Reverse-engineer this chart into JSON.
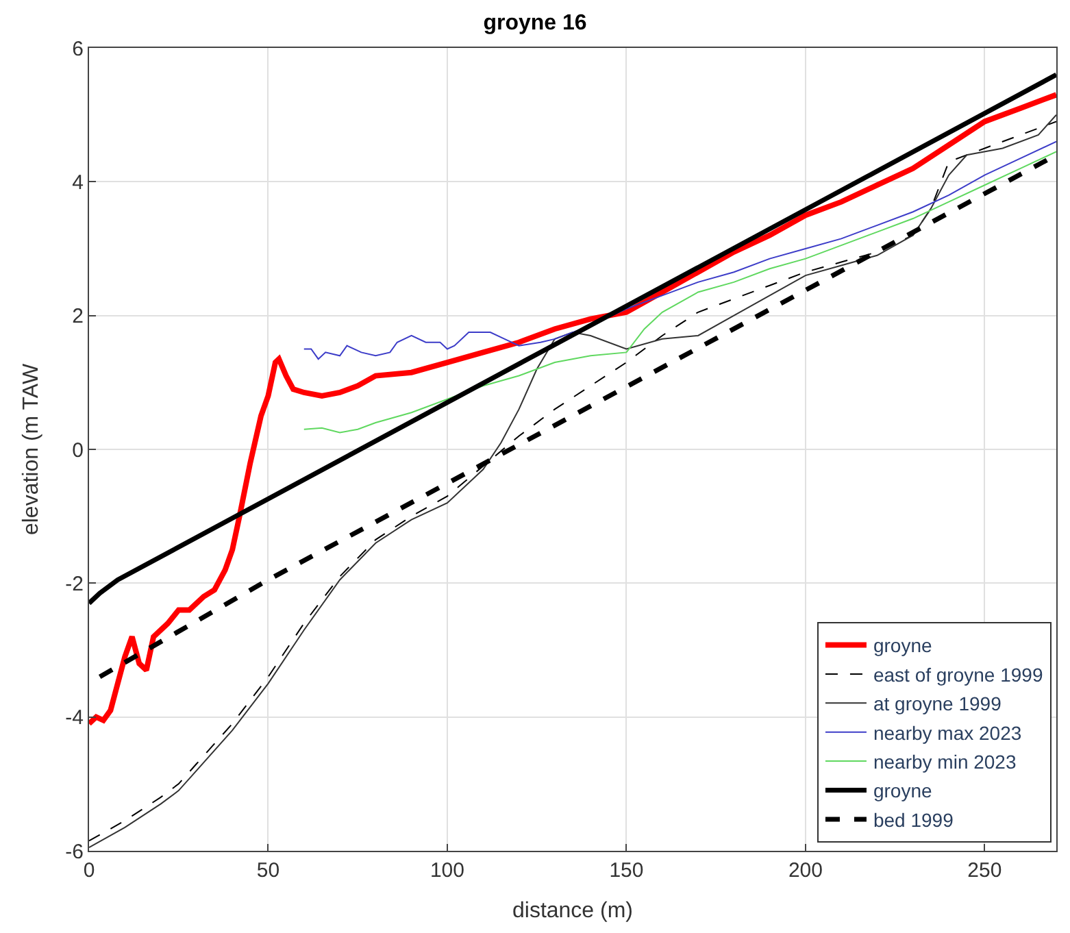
{
  "chart_data": {
    "type": "line",
    "title": "groyne 16",
    "xlabel": "distance (m)",
    "ylabel": "elevation (m TAW",
    "xlim": [
      0,
      270
    ],
    "ylim": [
      -6,
      6
    ],
    "xticks": [
      0,
      50,
      100,
      150,
      200,
      250
    ],
    "yticks": [
      -6,
      -4,
      -2,
      0,
      2,
      4,
      6
    ],
    "grid": true,
    "legend": "bottom right",
    "series": [
      {
        "name": "groyne",
        "color": "#ff0000",
        "line_style": "solid",
        "x": [
          0,
          2,
          4,
          6,
          10,
          12,
          14,
          16,
          18,
          22,
          25,
          28,
          32,
          35,
          38,
          40,
          42,
          45,
          48,
          50,
          52,
          53,
          55,
          57,
          60,
          65,
          70,
          75,
          80,
          90,
          100,
          110,
          120,
          130,
          140,
          150,
          160,
          170,
          180,
          190,
          200,
          210,
          220,
          230,
          240,
          250,
          260,
          270
        ],
        "values": [
          -4.1,
          -4.0,
          -4.05,
          -3.9,
          -3.1,
          -2.8,
          -3.2,
          -3.3,
          -2.8,
          -2.6,
          -2.4,
          -2.4,
          -2.2,
          -2.1,
          -1.8,
          -1.5,
          -1.0,
          -0.2,
          0.5,
          0.8,
          1.3,
          1.35,
          1.1,
          0.9,
          0.85,
          0.8,
          0.85,
          0.95,
          1.1,
          1.15,
          1.3,
          1.45,
          1.6,
          1.8,
          1.95,
          2.05,
          2.35,
          2.65,
          2.95,
          3.2,
          3.5,
          3.7,
          3.95,
          4.2,
          4.55,
          4.9,
          5.1,
          5.3
        ]
      },
      {
        "name": "east of groyne 1999",
        "color": "#000000",
        "line_style": "dashed",
        "x": [
          0,
          10,
          20,
          25,
          30,
          40,
          50,
          60,
          70,
          80,
          90,
          100,
          110,
          120,
          130,
          140,
          150,
          160,
          170,
          180,
          190,
          200,
          210,
          220,
          230,
          235,
          240,
          250,
          260,
          270
        ],
        "values": [
          -5.85,
          -5.55,
          -5.2,
          -5.0,
          -4.7,
          -4.1,
          -3.4,
          -2.6,
          -1.9,
          -1.35,
          -1.0,
          -0.7,
          -0.25,
          0.2,
          0.6,
          0.95,
          1.3,
          1.7,
          2.05,
          2.25,
          2.45,
          2.65,
          2.8,
          2.95,
          3.2,
          3.6,
          4.3,
          4.5,
          4.7,
          4.9
        ]
      },
      {
        "name": "at groyne 1999",
        "color": "#333333",
        "line_style": "solid",
        "x": [
          0,
          10,
          20,
          25,
          30,
          40,
          50,
          60,
          70,
          80,
          90,
          100,
          110,
          115,
          120,
          125,
          130,
          135,
          140,
          150,
          160,
          170,
          180,
          190,
          200,
          210,
          220,
          230,
          235,
          240,
          245,
          255,
          265,
          270
        ],
        "values": [
          -5.95,
          -5.65,
          -5.3,
          -5.1,
          -4.8,
          -4.2,
          -3.5,
          -2.7,
          -1.95,
          -1.4,
          -1.05,
          -0.8,
          -0.3,
          0.1,
          0.6,
          1.2,
          1.65,
          1.75,
          1.7,
          1.5,
          1.65,
          1.7,
          2.0,
          2.3,
          2.6,
          2.75,
          2.9,
          3.2,
          3.6,
          4.1,
          4.4,
          4.5,
          4.7,
          5.0
        ]
      },
      {
        "name": "nearby max 2023",
        "color": "#3c3cc8",
        "line_style": "solid",
        "x": [
          60,
          62,
          64,
          66,
          70,
          72,
          76,
          80,
          84,
          86,
          90,
          94,
          98,
          100,
          102,
          106,
          112,
          116,
          120,
          126,
          130,
          140,
          150,
          160,
          170,
          180,
          190,
          200,
          210,
          220,
          230,
          240,
          250,
          260,
          270
        ],
        "values": [
          1.5,
          1.5,
          1.35,
          1.45,
          1.4,
          1.55,
          1.45,
          1.4,
          1.45,
          1.6,
          1.7,
          1.6,
          1.6,
          1.5,
          1.55,
          1.75,
          1.75,
          1.65,
          1.55,
          1.6,
          1.65,
          1.85,
          2.1,
          2.3,
          2.5,
          2.65,
          2.85,
          3.0,
          3.15,
          3.35,
          3.55,
          3.8,
          4.1,
          4.35,
          4.6
        ]
      },
      {
        "name": "nearby min 2023",
        "color": "#5fd85f",
        "line_style": "solid",
        "x": [
          60,
          65,
          70,
          75,
          80,
          90,
          100,
          110,
          120,
          130,
          140,
          150,
          155,
          160,
          170,
          180,
          190,
          200,
          210,
          220,
          230,
          240,
          250,
          260,
          270
        ],
        "values": [
          0.3,
          0.32,
          0.25,
          0.3,
          0.4,
          0.55,
          0.75,
          0.95,
          1.1,
          1.3,
          1.4,
          1.45,
          1.8,
          2.05,
          2.35,
          2.5,
          2.7,
          2.85,
          3.05,
          3.25,
          3.45,
          3.7,
          3.95,
          4.2,
          4.45
        ]
      },
      {
        "name": "groyne",
        "color": "#000000",
        "line_style": "solid",
        "x": [
          0,
          3,
          8,
          270
        ],
        "values": [
          -2.3,
          -2.15,
          -1.95,
          5.6
        ]
      },
      {
        "name": "bed 1999",
        "color": "#000000",
        "line_style": "dashed",
        "x": [
          3,
          50,
          270
        ],
        "values": [
          -3.4,
          -1.95,
          4.4
        ]
      }
    ]
  }
}
